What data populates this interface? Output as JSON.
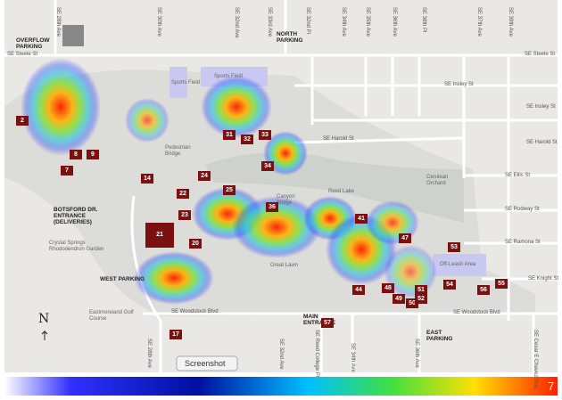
{
  "streets": {
    "north_south": [
      "SE 28th Ave",
      "SE 30th Ave",
      "SE 32nd Ave",
      "SE 33rd Ave",
      "SE 32nd Pl",
      "SE 34th Ave",
      "SE 35th Ave",
      "SE 36th Ave",
      "SE 38th Pl",
      "SE 37th Ave",
      "SE 39th Ave"
    ],
    "south": [
      "SE 28th Ave",
      "SE 32nd Ave",
      "SE Reed College Pl",
      "SE 34th Ave",
      "SE 36th Ave",
      "SE Cesar E Chavez Blvd"
    ],
    "east_west": [
      "SE Steele St",
      "SE Steele St",
      "SE Insley St",
      "SE Insley St",
      "SE Harold St",
      "SE Harold St",
      "SE Ellis St",
      "SE Rodway St",
      "SE Ramona St",
      "SE Knight St",
      "SE Woodstock Blvd",
      "SE Woodstock Blvd"
    ]
  },
  "entrances": [
    "OVERFLOW PARKING",
    "NORTH PARKING",
    "BOTSFORD DR. ENTRANCE (DELIVERIES)",
    "WEST PARKING",
    "MAIN ENTRANCE",
    "EAST PARKING"
  ],
  "places": [
    "Sports Field",
    "Sports Field",
    "Pedestrian Bridge",
    "Reed Lake",
    "Canyon Bridge",
    "Cerulean Orchard",
    "Crystal Springs Rhododendron Garden",
    "Eastmoreland Golf Course",
    "Great Lawn",
    "Off-Leash Area"
  ],
  "buildings": [
    "2",
    "7",
    "8",
    "9",
    "14",
    "17",
    "20",
    "21",
    "22",
    "23",
    "24",
    "25",
    "31",
    "32",
    "33",
    "34",
    "36",
    "41",
    "44",
    "47",
    "48",
    "49",
    "50",
    "51",
    "52",
    "53",
    "54",
    "55",
    "56",
    "57"
  ],
  "compass": "N",
  "screenshot_button": "Screenshot",
  "legend_max": "7"
}
